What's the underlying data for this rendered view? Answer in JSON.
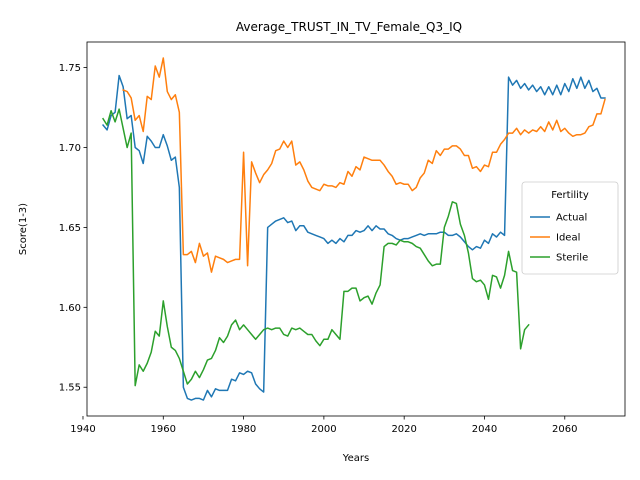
{
  "chart_data": {
    "type": "line",
    "title": "Average_TRUST_IN_TV_Female_Q3_IQ",
    "xlabel": "Years",
    "ylabel": "Score(1-3)",
    "xlim": [
      1941,
      2075
    ],
    "ylim": [
      1.532,
      1.766
    ],
    "xticks": [
      1940,
      1960,
      1980,
      2000,
      2020,
      2040,
      2060
    ],
    "xtick_labels": [
      "1940",
      "1960",
      "1980",
      "2000",
      "2020",
      "2040",
      "2060"
    ],
    "yticks": [
      1.55,
      1.6,
      1.65,
      1.7,
      1.75
    ],
    "ytick_labels": [
      "1.55",
      "1.60",
      "1.65",
      "1.70",
      "1.75"
    ],
    "grid": false,
    "legend": {
      "title": "Fertility",
      "placement": "center-right"
    },
    "series": [
      {
        "name": "Actual",
        "color": "#1f77b4",
        "x": [
          1945,
          1946,
          1947,
          1948,
          1949,
          1950,
          1951,
          1952,
          1953,
          1954,
          1955,
          1956,
          1957,
          1958,
          1959,
          1960,
          1961,
          1962,
          1963,
          1964,
          1965,
          1966,
          1967,
          1968,
          1969,
          1970,
          1971,
          1972,
          1973,
          1974,
          1975,
          1976,
          1977,
          1978,
          1979,
          1980,
          1981,
          1982,
          1983,
          1984,
          1985,
          1986,
          1987,
          1988,
          1989,
          1990,
          1991,
          1992,
          1993,
          1994,
          1995,
          1996,
          1997,
          1998,
          1999,
          2000,
          2001,
          2002,
          2003,
          2004,
          2005,
          2006,
          2007,
          2008,
          2009,
          2010,
          2011,
          2012,
          2013,
          2014,
          2015,
          2016,
          2017,
          2018,
          2019,
          2020,
          2021,
          2022,
          2023,
          2024,
          2025,
          2026,
          2027,
          2028,
          2029,
          2030,
          2031,
          2032,
          2033,
          2034,
          2035,
          2036,
          2037,
          2038,
          2039,
          2040,
          2041,
          2042,
          2043,
          2044,
          2045,
          2046,
          2047,
          2048,
          2049,
          2050,
          2051,
          2052,
          2053,
          2054,
          2055,
          2056,
          2057,
          2058,
          2059,
          2060,
          2061,
          2062,
          2063,
          2064,
          2065,
          2066,
          2067,
          2068,
          2069,
          2070
        ],
        "values": [
          1.714,
          1.711,
          1.72,
          1.722,
          1.745,
          1.738,
          1.718,
          1.72,
          1.7,
          1.698,
          1.69,
          1.707,
          1.704,
          1.7,
          1.7,
          1.708,
          1.701,
          1.692,
          1.694,
          1.675,
          1.55,
          1.543,
          1.542,
          1.543,
          1.543,
          1.542,
          1.548,
          1.544,
          1.549,
          1.548,
          1.548,
          1.548,
          1.555,
          1.554,
          1.559,
          1.558,
          1.56,
          1.559,
          1.552,
          1.549,
          1.547,
          1.65,
          1.652,
          1.654,
          1.655,
          1.656,
          1.653,
          1.654,
          1.648,
          1.651,
          1.651,
          1.647,
          1.646,
          1.645,
          1.644,
          1.643,
          1.64,
          1.642,
          1.64,
          1.643,
          1.641,
          1.645,
          1.645,
          1.648,
          1.647,
          1.648,
          1.651,
          1.648,
          1.651,
          1.649,
          1.649,
          1.646,
          1.645,
          1.643,
          1.642,
          1.643,
          1.643,
          1.644,
          1.645,
          1.646,
          1.645,
          1.646,
          1.646,
          1.646,
          1.647,
          1.647,
          1.645,
          1.645,
          1.646,
          1.644,
          1.641,
          1.638,
          1.636,
          1.638,
          1.637,
          1.642,
          1.64,
          1.646,
          1.644,
          1.647,
          1.645,
          1.744,
          1.739,
          1.742,
          1.737,
          1.74,
          1.736,
          1.739,
          1.735,
          1.738,
          1.733,
          1.738,
          1.733,
          1.739,
          1.733,
          1.74,
          1.735,
          1.743,
          1.737,
          1.744,
          1.737,
          1.742,
          1.735,
          1.737,
          1.731,
          1.731
        ]
      },
      {
        "name": "Ideal",
        "color": "#ff7f0e",
        "x": [
          1950,
          1951,
          1952,
          1953,
          1954,
          1955,
          1956,
          1957,
          1958,
          1959,
          1960,
          1961,
          1962,
          1963,
          1964,
          1965,
          1966,
          1967,
          1968,
          1969,
          1970,
          1971,
          1972,
          1973,
          1974,
          1975,
          1976,
          1977,
          1978,
          1979,
          1980,
          1981,
          1982,
          1983,
          1984,
          1985,
          1986,
          1987,
          1988,
          1989,
          1990,
          1991,
          1992,
          1993,
          1994,
          1995,
          1996,
          1997,
          1998,
          1999,
          2000,
          2001,
          2002,
          2003,
          2004,
          2005,
          2006,
          2007,
          2008,
          2009,
          2010,
          2011,
          2012,
          2013,
          2014,
          2015,
          2016,
          2017,
          2018,
          2019,
          2020,
          2021,
          2022,
          2023,
          2024,
          2025,
          2026,
          2027,
          2028,
          2029,
          2030,
          2031,
          2032,
          2033,
          2034,
          2035,
          2036,
          2037,
          2038,
          2039,
          2040,
          2041,
          2042,
          2043,
          2044,
          2045,
          2046,
          2047,
          2048,
          2049,
          2050,
          2051,
          2052,
          2053,
          2054,
          2055,
          2056,
          2057,
          2058,
          2059,
          2060,
          2061,
          2062,
          2063,
          2064,
          2065,
          2066,
          2067,
          2068,
          2069,
          2070
        ],
        "values": [
          1.736,
          1.735,
          1.731,
          1.717,
          1.72,
          1.71,
          1.732,
          1.73,
          1.751,
          1.744,
          1.756,
          1.735,
          1.73,
          1.733,
          1.722,
          1.633,
          1.633,
          1.635,
          1.628,
          1.64,
          1.632,
          1.634,
          1.622,
          1.632,
          1.631,
          1.63,
          1.628,
          1.629,
          1.63,
          1.63,
          1.697,
          1.626,
          1.691,
          1.684,
          1.678,
          1.683,
          1.686,
          1.69,
          1.698,
          1.699,
          1.704,
          1.7,
          1.704,
          1.689,
          1.691,
          1.686,
          1.679,
          1.675,
          1.674,
          1.673,
          1.677,
          1.676,
          1.676,
          1.675,
          1.678,
          1.677,
          1.685,
          1.682,
          1.688,
          1.686,
          1.694,
          1.693,
          1.692,
          1.692,
          1.692,
          1.689,
          1.685,
          1.682,
          1.677,
          1.678,
          1.677,
          1.677,
          1.673,
          1.675,
          1.681,
          1.684,
          1.692,
          1.69,
          1.698,
          1.695,
          1.699,
          1.699,
          1.701,
          1.701,
          1.699,
          1.695,
          1.695,
          1.687,
          1.688,
          1.685,
          1.689,
          1.688,
          1.697,
          1.697,
          1.702,
          1.705,
          1.709,
          1.709,
          1.712,
          1.708,
          1.711,
          1.709,
          1.711,
          1.71,
          1.713,
          1.71,
          1.716,
          1.711,
          1.717,
          1.71,
          1.712,
          1.709,
          1.707,
          1.708,
          1.708,
          1.709,
          1.713,
          1.714,
          1.721,
          1.721,
          1.73
        ]
      },
      {
        "name": "Sterile",
        "color": "#2ca02c",
        "x": [
          1945,
          1946,
          1947,
          1948,
          1949,
          1950,
          1951,
          1952,
          1953,
          1954,
          1955,
          1956,
          1957,
          1958,
          1959,
          1960,
          1961,
          1962,
          1963,
          1964,
          1965,
          1966,
          1967,
          1968,
          1969,
          1970,
          1971,
          1972,
          1973,
          1974,
          1975,
          1976,
          1977,
          1978,
          1979,
          1980,
          1981,
          1982,
          1983,
          1984,
          1985,
          1986,
          1987,
          1988,
          1989,
          1990,
          1991,
          1992,
          1993,
          1994,
          1995,
          1996,
          1997,
          1998,
          1999,
          2000,
          2001,
          2002,
          2003,
          2004,
          2005,
          2006,
          2007,
          2008,
          2009,
          2010,
          2011,
          2012,
          2013,
          2014,
          2015,
          2016,
          2017,
          2018,
          2019,
          2020,
          2021,
          2022,
          2023,
          2024,
          2025,
          2026,
          2027,
          2028,
          2029,
          2030,
          2031,
          2032,
          2033,
          2034,
          2035,
          2036,
          2037,
          2038,
          2039,
          2040,
          2041,
          2042,
          2043,
          2044,
          2045,
          2046,
          2047,
          2048,
          2049,
          2050,
          2051
        ],
        "values": [
          1.718,
          1.714,
          1.723,
          1.716,
          1.724,
          1.712,
          1.7,
          1.709,
          1.551,
          1.564,
          1.56,
          1.565,
          1.572,
          1.585,
          1.582,
          1.604,
          1.588,
          1.575,
          1.573,
          1.568,
          1.56,
          1.552,
          1.555,
          1.56,
          1.556,
          1.561,
          1.567,
          1.568,
          1.573,
          1.581,
          1.578,
          1.582,
          1.589,
          1.592,
          1.586,
          1.589,
          1.586,
          1.583,
          1.58,
          1.583,
          1.586,
          1.587,
          1.586,
          1.587,
          1.587,
          1.583,
          1.582,
          1.587,
          1.586,
          1.587,
          1.585,
          1.583,
          1.583,
          1.579,
          1.576,
          1.58,
          1.58,
          1.586,
          1.583,
          1.58,
          1.61,
          1.61,
          1.612,
          1.612,
          1.604,
          1.606,
          1.607,
          1.602,
          1.609,
          1.614,
          1.638,
          1.64,
          1.64,
          1.639,
          1.642,
          1.641,
          1.641,
          1.64,
          1.638,
          1.637,
          1.633,
          1.629,
          1.626,
          1.627,
          1.627,
          1.65,
          1.657,
          1.666,
          1.665,
          1.652,
          1.645,
          1.634,
          1.618,
          1.616,
          1.617,
          1.614,
          1.605,
          1.62,
          1.619,
          1.612,
          1.62,
          1.635,
          1.623,
          1.622,
          1.574,
          1.586,
          1.589
        ]
      }
    ]
  }
}
